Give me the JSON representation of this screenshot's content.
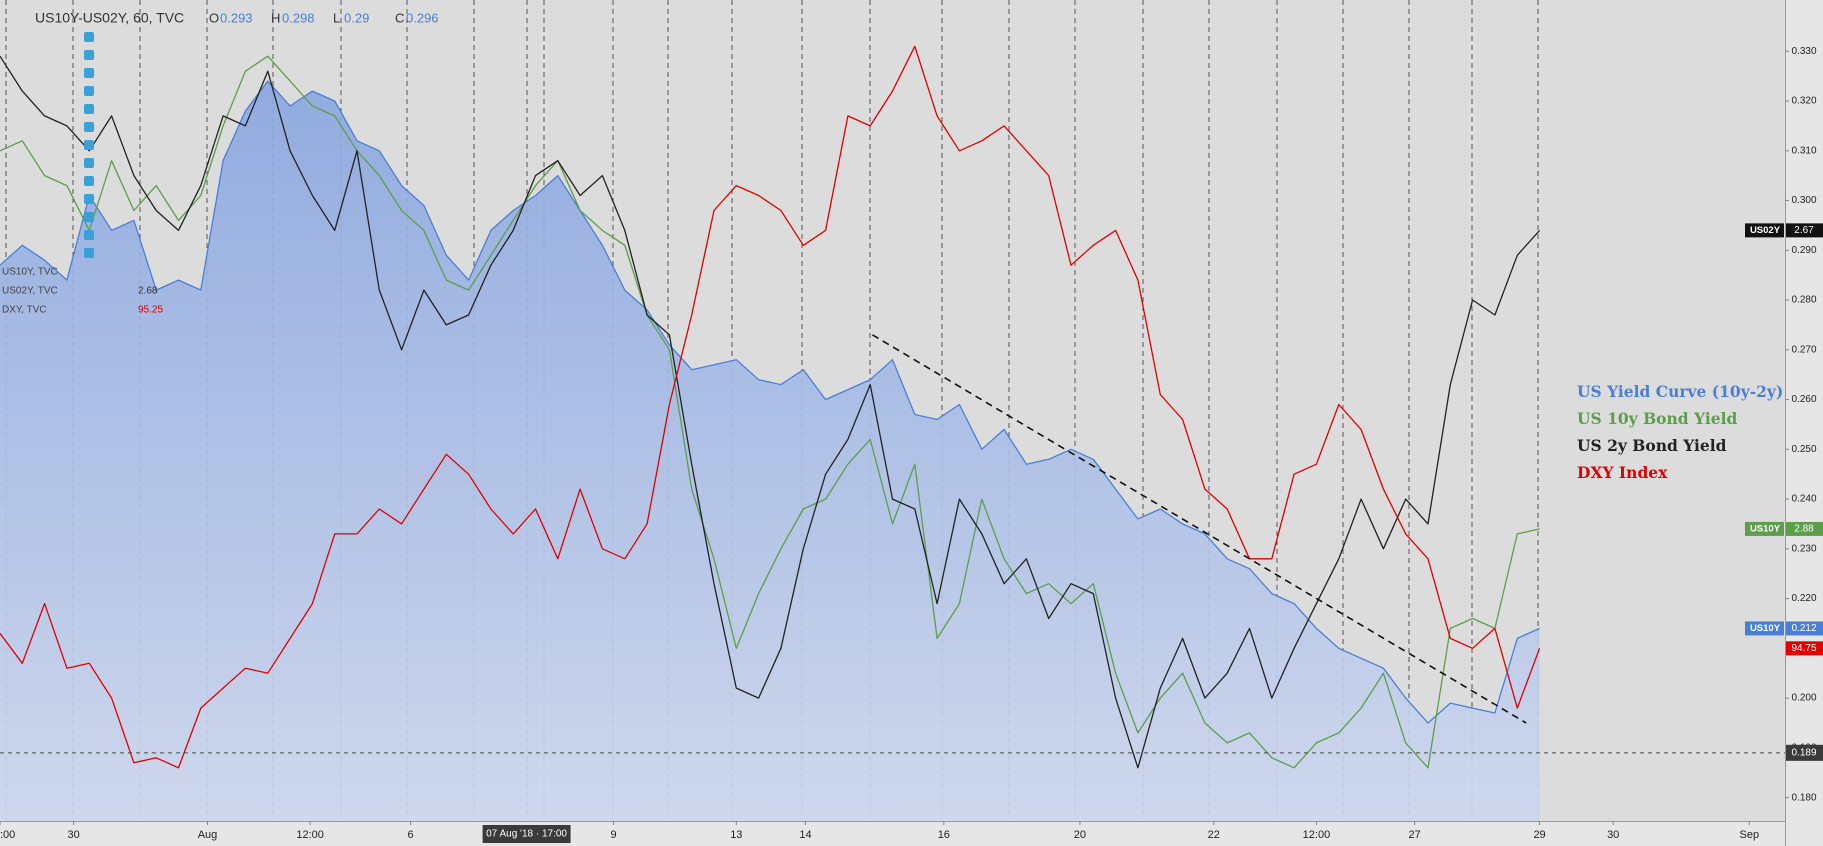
{
  "chart_data": {
    "type": "line",
    "header": {
      "title": "US10Y-US02Y, 60, TVC",
      "ohlc": [
        {
          "label": "O",
          "value": 0.293
        },
        {
          "label": "H",
          "value": 0.298
        },
        {
          "label": "L",
          "value": 0.29
        },
        {
          "label": "C",
          "value": 0.296
        }
      ]
    },
    "side_legend": [
      {
        "name": "US10Y, TVC"
      },
      {
        "name": "US02Y, TVC",
        "value": 2.68
      },
      {
        "name": "DXY, TVC",
        "value": 95.25,
        "color": "#e00000"
      }
    ],
    "x": [
      0,
      1,
      2,
      3,
      4,
      5,
      6,
      7,
      8,
      9,
      10,
      11,
      12,
      13,
      14,
      15,
      16,
      17,
      18,
      19,
      20,
      21,
      22,
      23,
      24,
      25,
      26,
      27,
      28,
      29,
      30,
      31,
      32,
      33,
      34,
      35,
      36,
      37,
      38,
      39,
      40,
      41,
      42,
      43,
      44,
      45,
      46,
      47,
      48,
      49,
      50,
      51,
      52,
      53,
      54,
      55,
      56,
      57,
      58,
      59,
      60,
      61,
      62,
      63,
      64,
      65,
      66,
      67,
      68,
      69
    ],
    "xlim": [
      0,
      80
    ],
    "xticks": [
      {
        "value": 0,
        "label": ":00"
      },
      {
        "value": 3.3,
        "label": "30"
      },
      {
        "value": 9.3,
        "label": "Aug"
      },
      {
        "value": 13.9,
        "label": "12:00"
      },
      {
        "value": 18.4,
        "label": "6"
      },
      {
        "value": 27.5,
        "label": "9"
      },
      {
        "value": 33,
        "label": "13"
      },
      {
        "value": 36.1,
        "label": "14"
      },
      {
        "value": 42.3,
        "label": "16"
      },
      {
        "value": 48.4,
        "label": "20"
      },
      {
        "value": 54.4,
        "label": "22"
      },
      {
        "value": 59,
        "label": "12:00"
      },
      {
        "value": 63.4,
        "label": "27"
      },
      {
        "value": 69,
        "label": "29"
      },
      {
        "value": 72.3,
        "label": "30"
      },
      {
        "value": 78.4,
        "label": "Sep"
      }
    ],
    "ylim": [
      0.1753,
      0.3403
    ],
    "yticks": [
      {
        "value": 0.18,
        "label": "0.180"
      },
      {
        "value": 0.19,
        "label": "0.190"
      },
      {
        "value": 0.2,
        "label": "0.200"
      },
      {
        "value": 0.21,
        "label": "0.210"
      },
      {
        "value": 0.22,
        "label": "0.220"
      },
      {
        "value": 0.23,
        "label": "0.230"
      },
      {
        "value": 0.24,
        "label": "0.240"
      },
      {
        "value": 0.25,
        "label": "0.250"
      },
      {
        "value": 0.26,
        "label": "0.260"
      },
      {
        "value": 0.27,
        "label": "0.270"
      },
      {
        "value": 0.28,
        "label": "0.280"
      },
      {
        "value": 0.29,
        "label": "0.290"
      },
      {
        "value": 0.3,
        "label": "0.300"
      },
      {
        "value": 0.31,
        "label": "0.310"
      },
      {
        "value": 0.32,
        "label": "0.320"
      },
      {
        "value": 0.33,
        "label": "0.330"
      }
    ],
    "legend": "right",
    "series": [
      {
        "name": "US Yield Curve (10y-2y)",
        "color": "#4a7fd6",
        "area": true,
        "values": [
          0.287,
          0.291,
          0.288,
          0.284,
          0.301,
          0.294,
          0.296,
          0.282,
          0.284,
          0.282,
          0.308,
          0.318,
          0.324,
          0.319,
          0.322,
          0.32,
          0.312,
          0.31,
          0.303,
          0.299,
          0.289,
          0.284,
          0.294,
          0.298,
          0.301,
          0.305,
          0.298,
          0.291,
          0.282,
          0.278,
          0.271,
          0.266,
          0.267,
          0.268,
          0.264,
          0.263,
          0.266,
          0.26,
          0.262,
          0.264,
          0.268,
          0.257,
          0.256,
          0.259,
          0.25,
          0.254,
          0.247,
          0.248,
          0.25,
          0.248,
          0.242,
          0.236,
          0.238,
          0.235,
          0.233,
          0.228,
          0.226,
          0.221,
          0.219,
          0.214,
          0.21,
          0.208,
          0.206,
          0.2,
          0.195,
          0.199,
          0.198,
          0.197,
          0.212,
          0.214
        ]
      },
      {
        "name": "US 10y Bond Yield",
        "color": "#5d9e4a",
        "values": [
          0.31,
          0.312,
          0.305,
          0.303,
          0.294,
          0.308,
          0.298,
          0.303,
          0.296,
          0.301,
          0.315,
          0.326,
          0.329,
          0.324,
          0.319,
          0.317,
          0.31,
          0.305,
          0.298,
          0.294,
          0.284,
          0.282,
          0.289,
          0.296,
          0.303,
          0.308,
          0.298,
          0.294,
          0.291,
          0.277,
          0.27,
          0.242,
          0.228,
          0.21,
          0.221,
          0.23,
          0.238,
          0.24,
          0.247,
          0.252,
          0.235,
          0.247,
          0.212,
          0.219,
          0.24,
          0.228,
          0.221,
          0.223,
          0.219,
          0.223,
          0.205,
          0.193,
          0.2,
          0.205,
          0.195,
          0.191,
          0.193,
          0.188,
          0.186,
          0.191,
          0.193,
          0.198,
          0.205,
          0.191,
          0.186,
          0.214,
          0.216,
          0.214,
          0.233,
          0.234
        ]
      },
      {
        "name": "US 2y Bond Yield",
        "color": "#222222",
        "values": [
          0.329,
          0.322,
          0.317,
          0.315,
          0.31,
          0.317,
          0.305,
          0.298,
          0.294,
          0.303,
          0.317,
          0.315,
          0.326,
          0.31,
          0.301,
          0.294,
          0.31,
          0.282,
          0.27,
          0.282,
          0.275,
          0.277,
          0.287,
          0.294,
          0.305,
          0.308,
          0.301,
          0.305,
          0.294,
          0.277,
          0.273,
          0.247,
          0.223,
          0.202,
          0.2,
          0.21,
          0.23,
          0.245,
          0.252,
          0.263,
          0.24,
          0.238,
          0.219,
          0.24,
          0.233,
          0.223,
          0.228,
          0.216,
          0.223,
          0.221,
          0.2,
          0.186,
          0.202,
          0.212,
          0.2,
          0.205,
          0.214,
          0.2,
          0.21,
          0.219,
          0.228,
          0.24,
          0.23,
          0.24,
          0.235,
          0.263,
          0.28,
          0.277,
          0.289,
          0.294
        ]
      },
      {
        "name": "DXY Index",
        "color": "#e00000",
        "values": [
          0.213,
          0.207,
          0.219,
          0.206,
          0.207,
          0.2,
          0.187,
          0.188,
          0.186,
          0.198,
          0.202,
          0.206,
          0.205,
          0.212,
          0.219,
          0.233,
          0.233,
          0.238,
          0.235,
          0.242,
          0.249,
          0.245,
          0.238,
          0.233,
          0.238,
          0.228,
          0.242,
          0.23,
          0.228,
          0.235,
          0.259,
          0.277,
          0.298,
          0.303,
          0.301,
          0.298,
          0.291,
          0.294,
          0.317,
          0.315,
          0.322,
          0.331,
          0.317,
          0.31,
          0.312,
          0.315,
          0.31,
          0.305,
          0.287,
          0.291,
          0.294,
          0.284,
          0.261,
          0.256,
          0.242,
          0.238,
          0.228,
          0.228,
          0.245,
          0.247,
          0.259,
          0.254,
          0.242,
          0.233,
          0.228,
          0.212,
          0.21,
          0.214,
          0.198,
          0.21
        ]
      }
    ],
    "trendline": {
      "x": [
        39.1,
        68.4
      ],
      "y": [
        0.273,
        0.195
      ]
    },
    "crosshair": {
      "x": 23.6,
      "x_label": "07 Aug '18 · 17:00",
      "y": 0.189
    },
    "price_tags": [
      {
        "name": "US02Y",
        "value": 2.67,
        "color": "#111111"
      },
      {
        "name": "US10Y",
        "value": 2.88,
        "color": "#5d9e4a"
      },
      {
        "name": "US10Y",
        "value": 0.212,
        "color": "#4a7fd6"
      },
      {
        "value": 94.75,
        "color": "#e00000"
      }
    ]
  }
}
